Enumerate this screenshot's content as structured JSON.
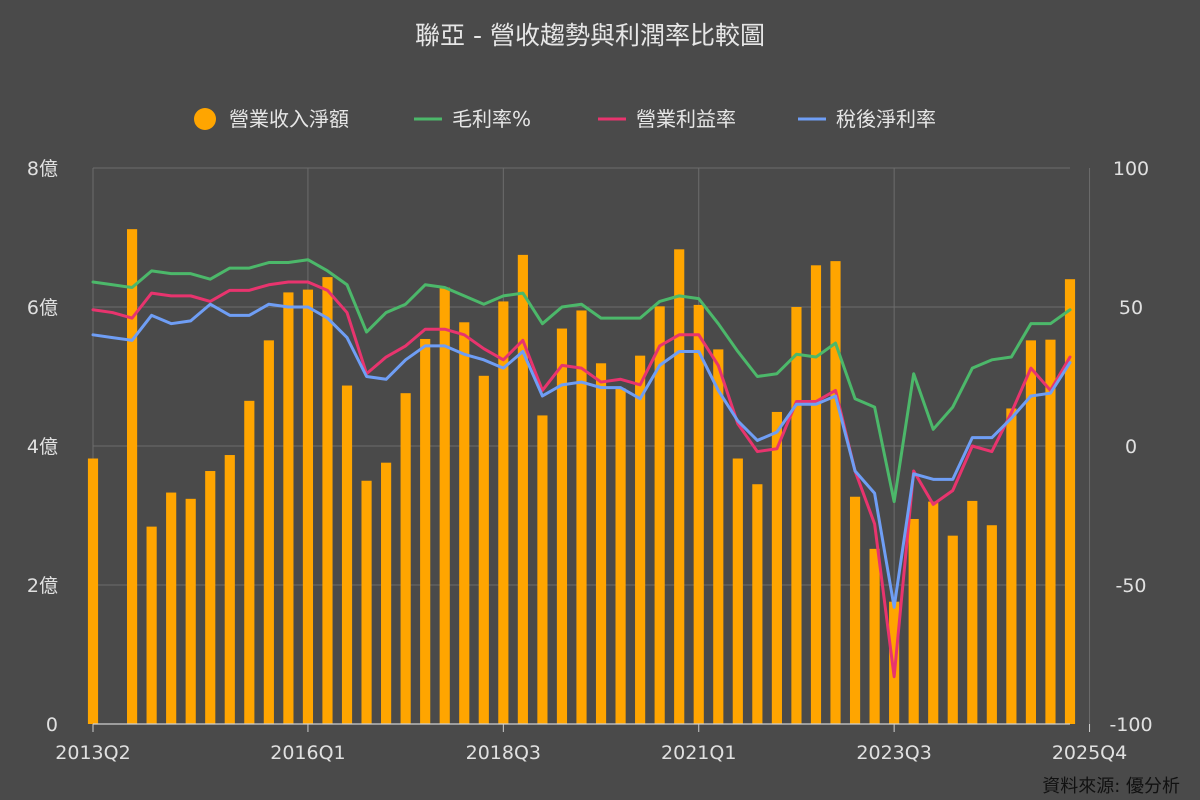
{
  "chart_data": {
    "type": "bar",
    "title": "聯亞 - 營收趨勢與利潤率比較圖",
    "source": "資料來源: 優分析",
    "legend": {
      "position": "top",
      "items": [
        {
          "label": "營業收入淨額",
          "color": "#ffa500",
          "shape": "circle"
        },
        {
          "label": "毛利率%",
          "color": "#4cb86a",
          "shape": "line"
        },
        {
          "label": "營業利益率",
          "color": "#e8346e",
          "shape": "line"
        },
        {
          "label": "稅後淨利率",
          "color": "#6f9ef5",
          "shape": "line"
        }
      ]
    },
    "y_left": {
      "min": 0,
      "max": 8,
      "ticks": [
        "0",
        "2億",
        "4億",
        "6億",
        "8億"
      ]
    },
    "y_right": {
      "min": -100,
      "max": 100,
      "ticks": [
        "-100",
        "-50",
        "0",
        "50",
        "100"
      ]
    },
    "x_tick_labels": [
      "2013Q2",
      "2016Q1",
      "2018Q3",
      "2021Q1",
      "2023Q3",
      "2025Q4"
    ],
    "x_tick_indices": [
      0,
      11,
      21,
      31,
      41,
      51
    ],
    "grid": true,
    "categories": [
      "2013Q2",
      "2013Q3",
      "2013Q4",
      "2014Q1",
      "2014Q2",
      "2014Q3",
      "2014Q4",
      "2015Q1",
      "2015Q2",
      "2015Q3",
      "2015Q4",
      "2016Q1",
      "2016Q2",
      "2016Q3",
      "2016Q4",
      "2017Q1",
      "2017Q2",
      "2017Q3",
      "2017Q4",
      "2018Q1",
      "2018Q2",
      "2018Q3",
      "2018Q4",
      "2019Q1",
      "2019Q2",
      "2019Q3",
      "2019Q4",
      "2020Q1",
      "2020Q2",
      "2020Q3",
      "2020Q4",
      "2021Q1",
      "2021Q2",
      "2021Q3",
      "2021Q4",
      "2022Q1",
      "2022Q2",
      "2022Q3",
      "2022Q4",
      "2023Q1",
      "2023Q2",
      "2023Q3",
      "2023Q4",
      "2024Q1",
      "2024Q2",
      "2024Q3",
      "2024Q4",
      "2025Q1",
      "2025Q2",
      "2025Q3",
      "2025Q4"
    ],
    "series": [
      {
        "name": "營業收入淨額",
        "kind": "bar",
        "axis": "left",
        "color": "#ffa500",
        "values": [
          3.82,
          null,
          7.12,
          2.84,
          3.33,
          3.24,
          3.64,
          3.87,
          4.65,
          5.52,
          6.21,
          6.25,
          6.43,
          4.87,
          3.5,
          3.76,
          4.76,
          5.54,
          6.28,
          5.78,
          5.01,
          6.08,
          6.75,
          4.44,
          5.69,
          5.95,
          5.19,
          4.83,
          5.3,
          6.01,
          6.83,
          6.03,
          5.39,
          3.82,
          3.45,
          4.49,
          6.0,
          6.6,
          6.66,
          3.27,
          2.52,
          1.76,
          2.95,
          3.2,
          2.71,
          3.21,
          2.86,
          4.54,
          5.52,
          5.53,
          6.4
        ]
      },
      {
        "name": "毛利率%",
        "kind": "line",
        "axis": "right",
        "color": "#4cb86a",
        "values": [
          59,
          58,
          57,
          63,
          62,
          62,
          60,
          64,
          64,
          66,
          66,
          67,
          63,
          58,
          41,
          48,
          51,
          58,
          57,
          54,
          51,
          54,
          55,
          44,
          50,
          51,
          46,
          46,
          46,
          52,
          54,
          53,
          44,
          34,
          25,
          26,
          33,
          32,
          37,
          17,
          14,
          -20,
          26,
          6,
          14,
          28,
          31,
          32,
          44,
          44,
          49
        ]
      },
      {
        "name": "營業利益率",
        "kind": "line",
        "axis": "right",
        "color": "#e8346e",
        "values": [
          49,
          48,
          46,
          55,
          54,
          54,
          52,
          56,
          56,
          58,
          59,
          59,
          56,
          48,
          26,
          32,
          36,
          42,
          42,
          40,
          35,
          31,
          38,
          20,
          29,
          28,
          23,
          24,
          22,
          36,
          40,
          40,
          29,
          8,
          -2,
          -1,
          16,
          16,
          20,
          -9,
          -28,
          -83,
          -9,
          -21,
          -16,
          0,
          -2,
          12,
          28,
          20,
          32
        ]
      },
      {
        "name": "稅後淨利率",
        "kind": "line",
        "axis": "right",
        "color": "#6f9ef5",
        "values": [
          40,
          39,
          38,
          47,
          44,
          45,
          51,
          47,
          47,
          51,
          50,
          50,
          46,
          39,
          25,
          24,
          31,
          36,
          36,
          33,
          31,
          28,
          34,
          18,
          22,
          23,
          21,
          21,
          17,
          29,
          34,
          34,
          20,
          9,
          2,
          5,
          15,
          15,
          18,
          -9,
          -17,
          -58,
          -10,
          -12,
          -12,
          3,
          3,
          10,
          18,
          19,
          30
        ]
      }
    ]
  }
}
